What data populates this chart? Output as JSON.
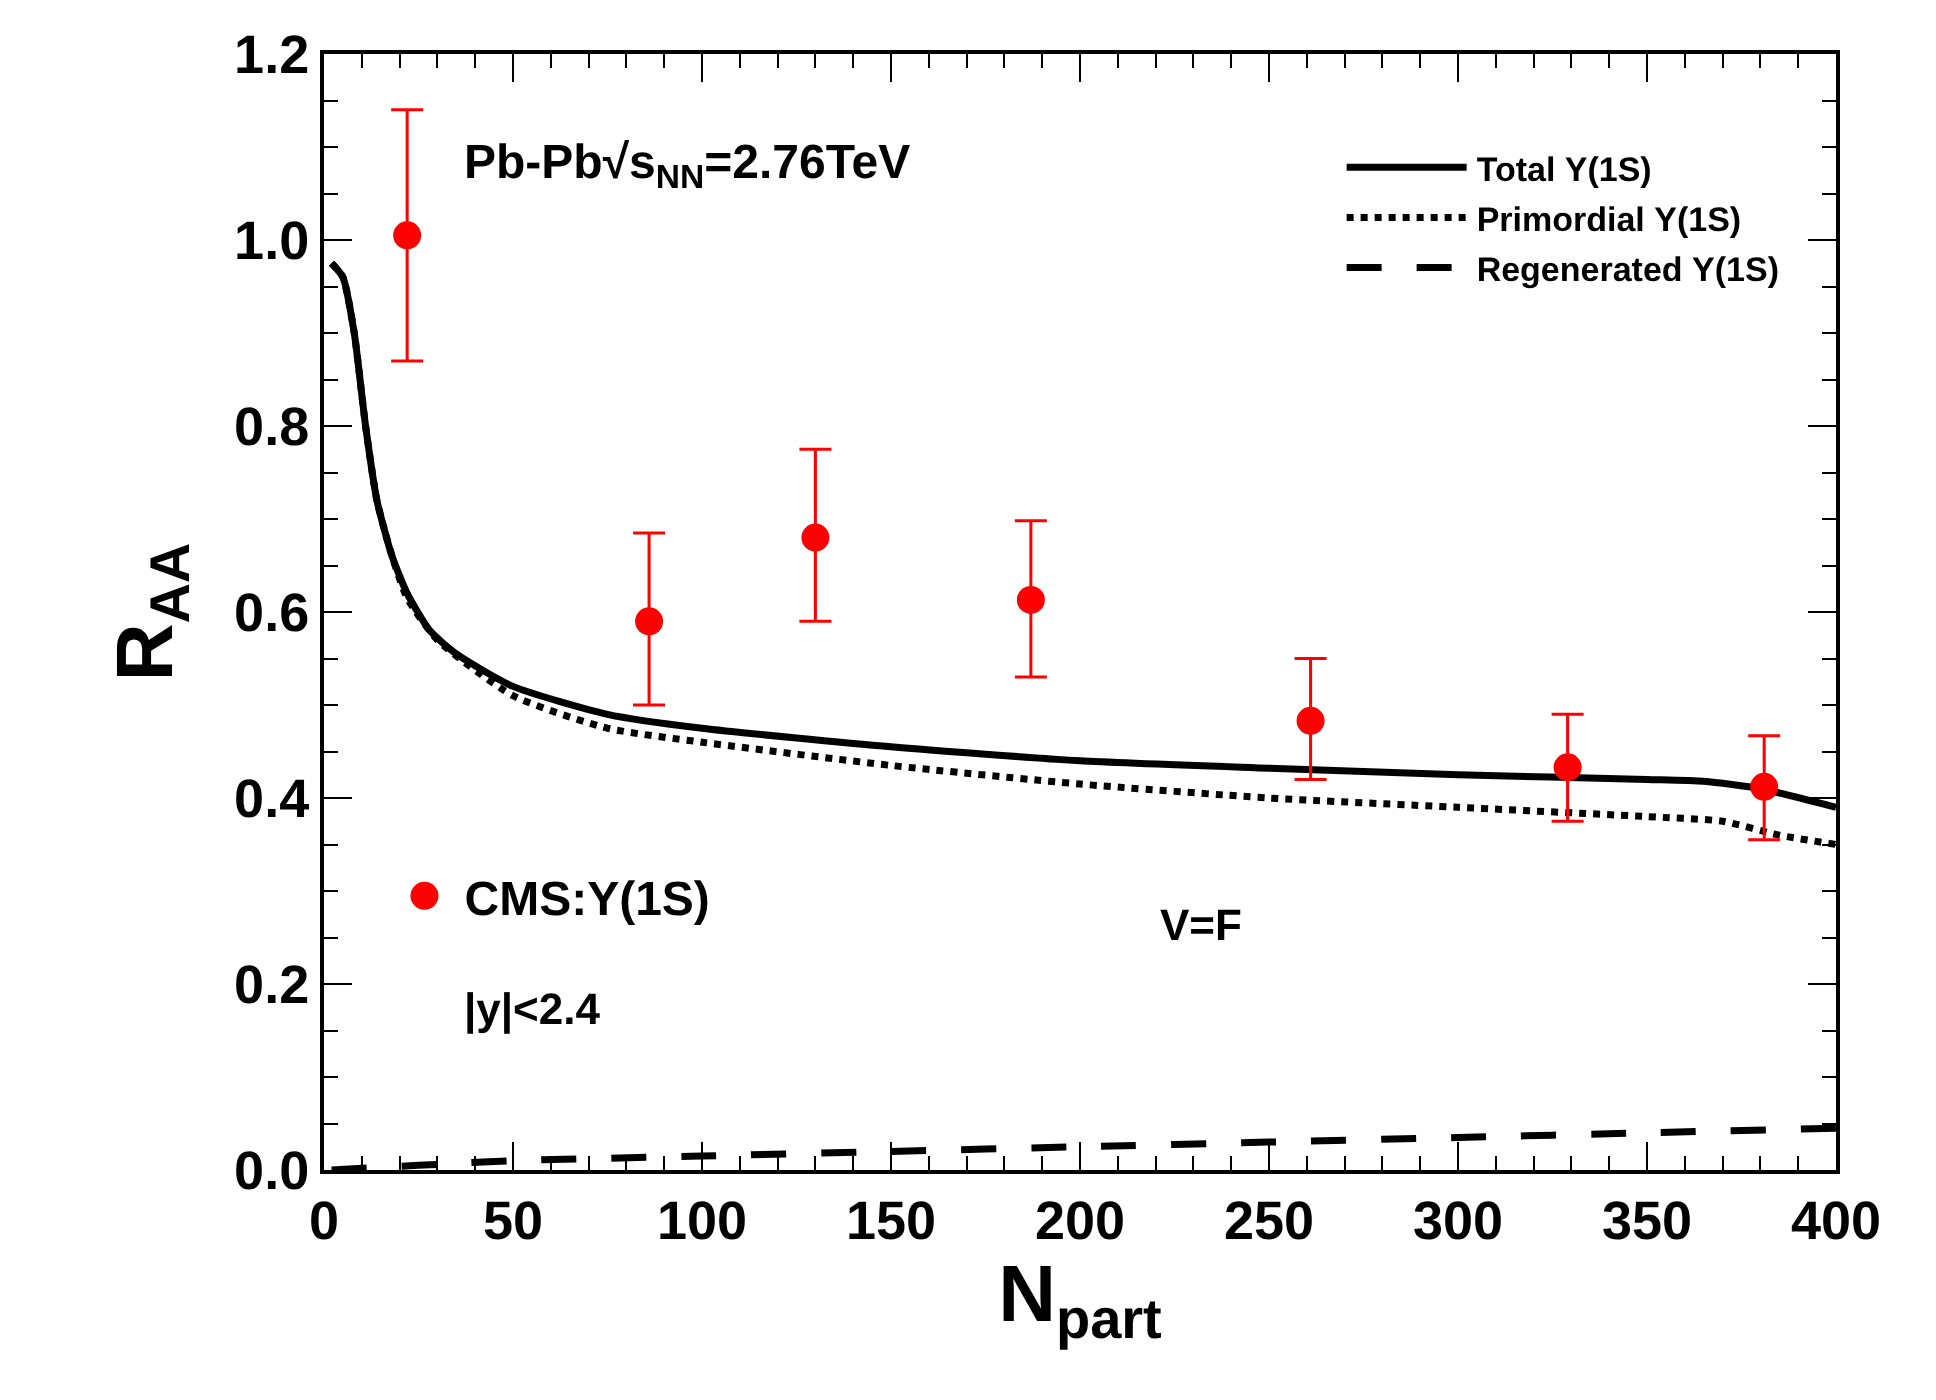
{
  "chart_data": {
    "type": "line",
    "xlabel": "N$_{part}$",
    "ylabel": "R$_{AA}$",
    "xlim": [
      0,
      400
    ],
    "xticks": [
      0,
      50,
      100,
      150,
      200,
      250,
      300,
      350,
      400
    ],
    "ylim": [
      0,
      1.2
    ],
    "yticks": [
      {
        "value": 0,
        "label": "0.0"
      },
      0.2,
      0.4,
      0.6,
      0.8,
      {
        "value": 1,
        "label": "1.0"
      },
      1.2
    ],
    "grid": false,
    "legend": "top right",
    "annotations": [
      "Pb-Pb√s$_{NN}$=2.76TeV",
      "|y|<2.4",
      "V=F"
    ],
    "series": [
      {
        "name": "Total Υ(1S)",
        "line_style": "solid",
        "color": "#000000",
        "x": [
          2,
          5,
          8,
          11,
          14,
          18,
          22,
          28,
          35,
          50,
          75,
          100,
          150,
          200,
          250,
          300,
          350,
          365,
          380,
          400
        ],
        "values": [
          0.975,
          0.96,
          0.9,
          0.8,
          0.72,
          0.66,
          0.62,
          0.58,
          0.555,
          0.52,
          0.49,
          0.475,
          0.455,
          0.44,
          0.432,
          0.425,
          0.42,
          0.418,
          0.41,
          0.39
        ]
      },
      {
        "name": "Primordial Υ(1S)",
        "line_style": "dotted",
        "color": "#000000",
        "x": [
          2,
          5,
          8,
          11,
          14,
          18,
          22,
          30,
          50,
          75,
          100,
          150,
          200,
          250,
          300,
          350,
          370,
          385,
          400
        ],
        "values": [
          0.975,
          0.96,
          0.9,
          0.8,
          0.72,
          0.66,
          0.615,
          0.57,
          0.51,
          0.475,
          0.46,
          0.435,
          0.415,
          0.4,
          0.39,
          0.38,
          0.375,
          0.36,
          0.35
        ]
      },
      {
        "name": "Regenerated Υ(1S)",
        "line_style": "dashed",
        "color": "#000000",
        "x": [
          2,
          25,
          50,
          100,
          150,
          200,
          250,
          300,
          350,
          400
        ],
        "values": [
          0.0,
          0.005,
          0.01,
          0.015,
          0.02,
          0.025,
          0.03,
          0.035,
          0.04,
          0.045
        ]
      },
      {
        "name": "CMS:Υ(1S)",
        "type": "scatter",
        "marker": "circle",
        "color": "#ff0000",
        "x": [
          22,
          86,
          130,
          187,
          261,
          329,
          381
        ],
        "values": [
          1.005,
          0.59,
          0.68,
          0.613,
          0.483,
          0.433,
          0.412
        ],
        "errors": [
          [
            0.87,
            1.14
          ],
          [
            0.5,
            0.685
          ],
          [
            0.59,
            0.775
          ],
          [
            0.53,
            0.698
          ],
          [
            0.42,
            0.55
          ],
          [
            0.375,
            0.49
          ],
          [
            0.355,
            0.467
          ]
        ]
      }
    ]
  }
}
